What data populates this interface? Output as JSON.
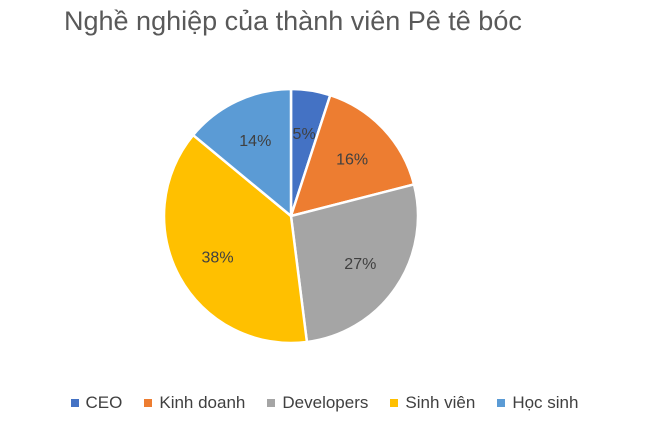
{
  "chart_data": {
    "type": "pie",
    "title": "Nghề nghiệp của thành viên Pê tê bóc",
    "categories": [
      "CEO",
      "Kinh doanh",
      "Developers",
      "Sinh viên",
      "Học sinh"
    ],
    "values": [
      5,
      16,
      27,
      38,
      14
    ],
    "data_labels": [
      "5%",
      "16%",
      "27%",
      "38%",
      "14%"
    ],
    "colors": [
      "#4472C4",
      "#ED7D31",
      "#A5A5A5",
      "#FFC000",
      "#5B9BD5"
    ],
    "legend_position": "bottom",
    "start_angle": "top, clockwise"
  }
}
